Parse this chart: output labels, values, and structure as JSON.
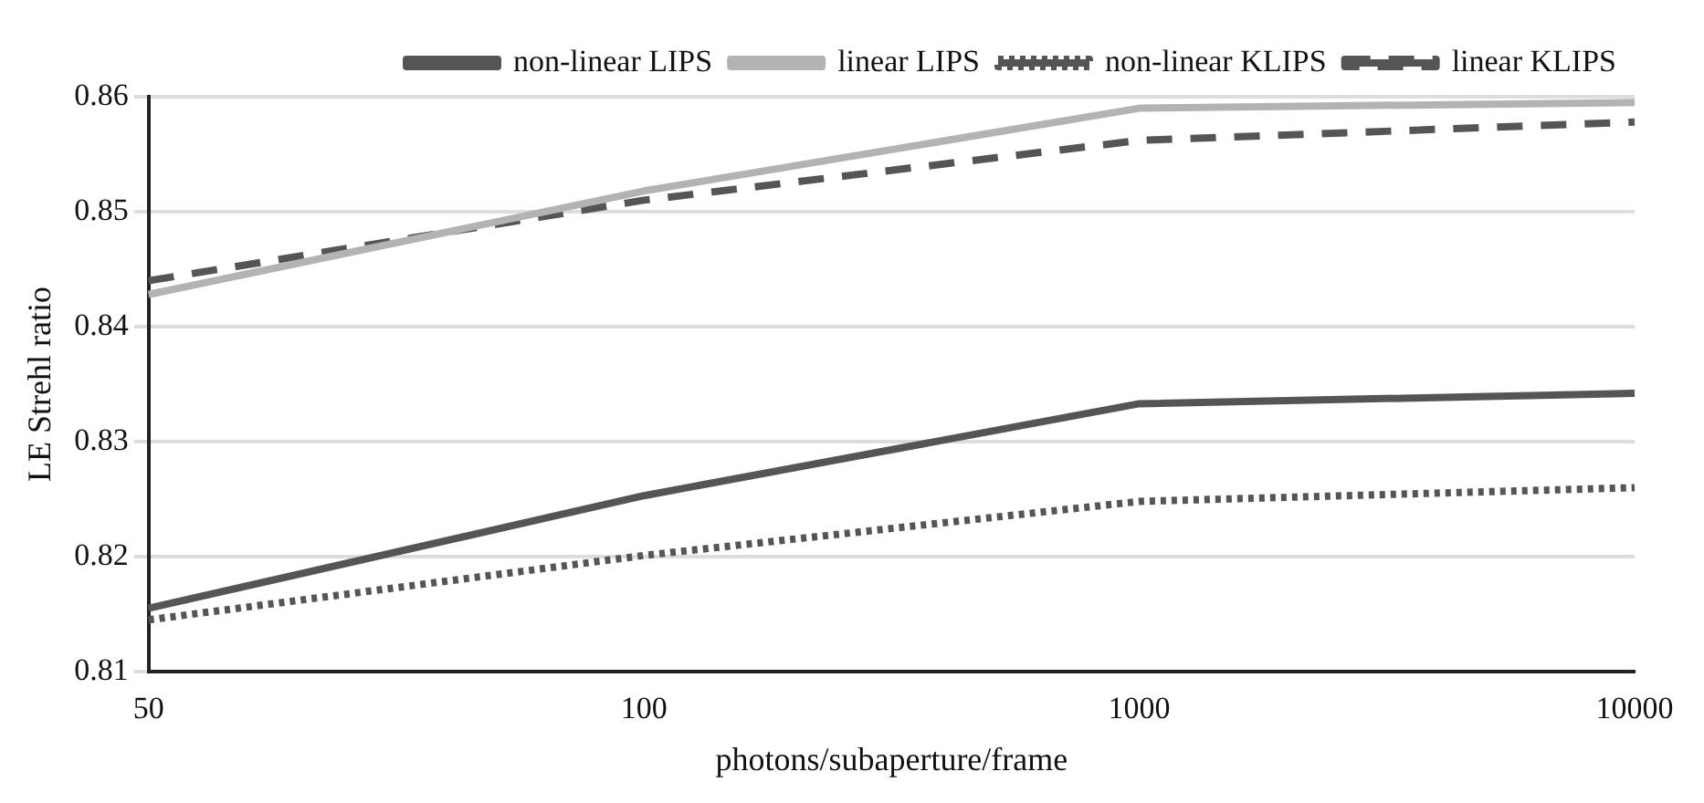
{
  "chart_data": {
    "type": "line",
    "xlabel": "photons/subaperture/frame",
    "ylabel": "LE Strehl ratio",
    "categories": [
      "50",
      "100",
      "1000",
      "10000"
    ],
    "ylim": [
      0.81,
      0.86
    ],
    "yticks": [
      0.81,
      0.82,
      0.83,
      0.84,
      0.85,
      0.86
    ],
    "grid": "y",
    "legend": "top right",
    "marker": "none",
    "series": [
      {
        "name": "non-linear LIPS",
        "color": "#555555",
        "line_style": "solid",
        "values": [
          0.8155,
          0.8253,
          0.8333,
          0.8342
        ]
      },
      {
        "name": "linear LIPS",
        "color": "#b3b3b3",
        "line_style": "solid",
        "values": [
          0.8428,
          0.8518,
          0.859,
          0.8595
        ]
      },
      {
        "name": "non-linear KLIPS",
        "color": "#555555",
        "line_style": "dotted",
        "values": [
          0.8145,
          0.8201,
          0.8248,
          0.826
        ]
      },
      {
        "name": "linear KLIPS",
        "color": "#555555",
        "line_style": "dashed",
        "values": [
          0.844,
          0.851,
          0.8562,
          0.8578
        ]
      }
    ]
  }
}
